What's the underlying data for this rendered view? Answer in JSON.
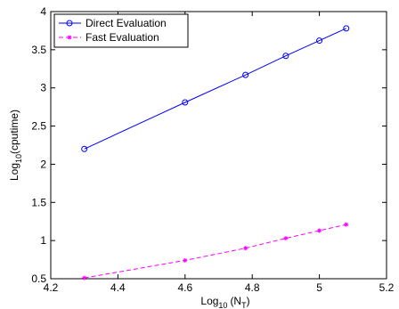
{
  "chart_data": {
    "type": "line",
    "xlabel": "Log",
    "xlabel_sub": "10",
    "xlabel_suffix": "(N",
    "xlabel_suffix_sub": "T",
    "xlabel_close": ")",
    "ylabel": "Log",
    "ylabel_sub": "10",
    "ylabel_suffix": "(cputime)",
    "xlim": [
      4.2,
      5.2
    ],
    "ylim": [
      0.5,
      4
    ],
    "xticks": [
      "4.2",
      "4.4",
      "4.6",
      "4.8",
      "5",
      "5.2"
    ],
    "yticks": [
      "0.5",
      "1",
      "1.5",
      "2",
      "2.5",
      "3",
      "3.5",
      "4"
    ],
    "grid": false,
    "legend_position": "top-left",
    "series": [
      {
        "name": "Direct Evaluation",
        "color": "#0000ff",
        "marker": "circle",
        "line": "solid",
        "x": [
          4.3,
          4.6,
          4.78,
          4.9,
          5.0,
          5.08
        ],
        "y": [
          2.2,
          2.81,
          3.17,
          3.42,
          3.62,
          3.78
        ]
      },
      {
        "name": "Fast Evaluation",
        "color": "#ff00ff",
        "marker": "star",
        "line": "dashed",
        "x": [
          4.3,
          4.6,
          4.78,
          4.9,
          5.0,
          5.08
        ],
        "y": [
          0.51,
          0.74,
          0.9,
          1.03,
          1.13,
          1.21
        ]
      }
    ]
  }
}
